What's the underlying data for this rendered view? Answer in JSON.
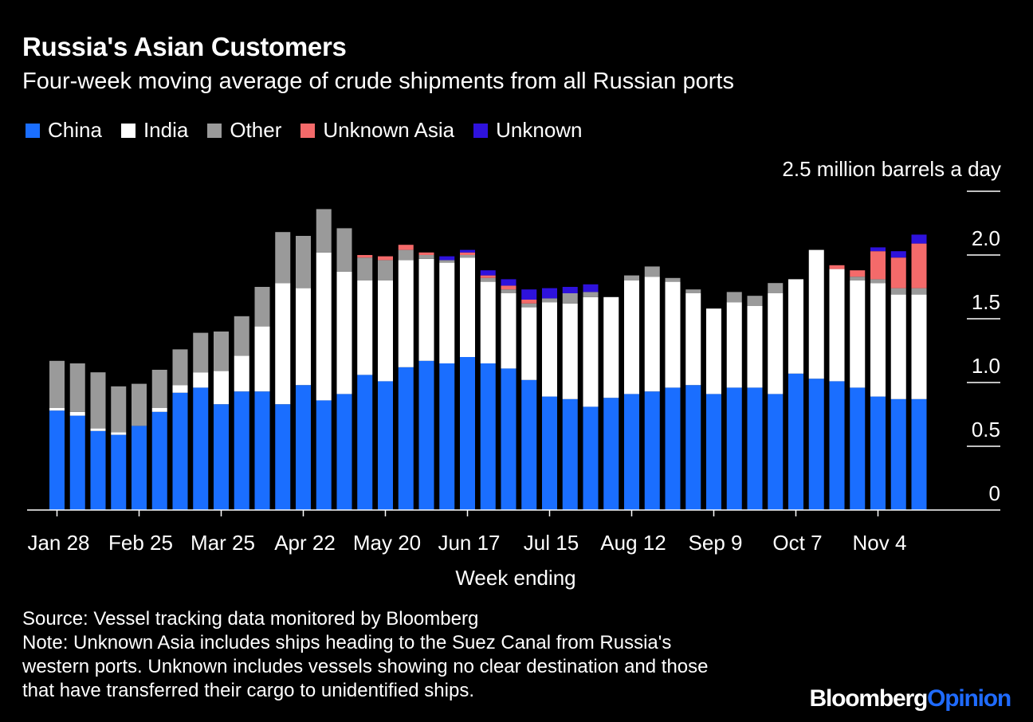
{
  "title": "Russia's Asian Customers",
  "subtitle": "Four-week moving average of crude shipments from all Russian ports",
  "legend": [
    {
      "label": "China",
      "color": "#1a6eff"
    },
    {
      "label": "India",
      "color": "#ffffff"
    },
    {
      "label": "Other",
      "color": "#9a9a9a"
    },
    {
      "label": "Unknown Asia",
      "color": "#f46a6a"
    },
    {
      "label": "Unknown",
      "color": "#2e12dd"
    }
  ],
  "unit_label": "2.5 million barrels a day",
  "xlabel": "Week ending",
  "footnotes": {
    "source": "Source: Vessel tracking data monitored by Bloomberg",
    "note_lines": [
      "Note: Unknown Asia includes ships heading to the Suez Canal from Russia's",
      "western ports. Unknown includes vessels showing no clear destination and those",
      "that have transferred their cargo to unidentified ships."
    ]
  },
  "brand": {
    "part1": "Bloomberg",
    "part2": "Opinion"
  },
  "chart_data": {
    "type": "bar",
    "stacked": true,
    "ylim": [
      0,
      2.5
    ],
    "yticks": [
      0,
      0.5,
      1.0,
      1.5,
      2.0
    ],
    "ytick_labels": [
      "0",
      "0.5",
      "1.0",
      "1.5",
      "2.0"
    ],
    "xtick_labels": [
      {
        "label": "Jan 28",
        "index": 0
      },
      {
        "label": "Feb 25",
        "index": 4
      },
      {
        "label": "Mar 25",
        "index": 8
      },
      {
        "label": "Apr 22",
        "index": 12
      },
      {
        "label": "May 20",
        "index": 16
      },
      {
        "label": "Jun 17",
        "index": 20
      },
      {
        "label": "Jul 15",
        "index": 24
      },
      {
        "label": "Aug 12",
        "index": 28
      },
      {
        "label": "Sep 9",
        "index": 32
      },
      {
        "label": "Oct 7",
        "index": 36
      },
      {
        "label": "Nov 4",
        "index": 40
      }
    ],
    "series": [
      {
        "name": "China",
        "color": "#1a6eff",
        "values": [
          0.78,
          0.74,
          0.62,
          0.59,
          0.66,
          0.77,
          0.92,
          0.96,
          0.83,
          0.93,
          0.93,
          0.83,
          0.98,
          0.86,
          0.91,
          1.06,
          1.01,
          1.12,
          1.17,
          1.15,
          1.2,
          1.15,
          1.11,
          1.02,
          0.89,
          0.87,
          0.81,
          0.88,
          0.91,
          0.93,
          0.96,
          0.98,
          0.91,
          0.96,
          0.96,
          0.91,
          1.07,
          1.03,
          1.01,
          0.96,
          0.89,
          0.87,
          0.87
        ]
      },
      {
        "name": "India",
        "color": "#ffffff",
        "values": [
          0.02,
          0.03,
          0.02,
          0.02,
          0.0,
          0.03,
          0.06,
          0.12,
          0.26,
          0.28,
          0.51,
          0.95,
          0.76,
          1.16,
          0.96,
          0.74,
          0.79,
          0.84,
          0.8,
          0.79,
          0.78,
          0.64,
          0.59,
          0.57,
          0.74,
          0.75,
          0.86,
          0.79,
          0.89,
          0.9,
          0.83,
          0.72,
          0.67,
          0.67,
          0.64,
          0.79,
          0.74,
          1.01,
          0.88,
          0.84,
          0.89,
          0.82,
          0.82
        ]
      },
      {
        "name": "Other",
        "color": "#9a9a9a",
        "values": [
          0.37,
          0.38,
          0.44,
          0.36,
          0.33,
          0.3,
          0.28,
          0.31,
          0.31,
          0.31,
          0.31,
          0.4,
          0.41,
          0.34,
          0.34,
          0.18,
          0.16,
          0.08,
          0.03,
          0.02,
          0.02,
          0.03,
          0.03,
          0.03,
          0.03,
          0.08,
          0.04,
          0.0,
          0.04,
          0.08,
          0.03,
          0.03,
          0.0,
          0.08,
          0.08,
          0.08,
          0.0,
          0.0,
          0.0,
          0.03,
          0.03,
          0.05,
          0.05
        ]
      },
      {
        "name": "Unknown Asia",
        "color": "#f46a6a",
        "values": [
          0,
          0,
          0,
          0,
          0,
          0,
          0,
          0,
          0,
          0,
          0,
          0,
          0,
          0,
          0,
          0.02,
          0.03,
          0.04,
          0.02,
          0,
          0.02,
          0.02,
          0.03,
          0.03,
          0,
          0,
          0,
          0,
          0,
          0,
          0,
          0,
          0,
          0,
          0,
          0,
          0,
          0,
          0.03,
          0.05,
          0.22,
          0.24,
          0.35
        ]
      },
      {
        "name": "Unknown",
        "color": "#2e12dd",
        "values": [
          0,
          0,
          0,
          0,
          0,
          0,
          0,
          0,
          0,
          0,
          0,
          0,
          0,
          0,
          0,
          0,
          0,
          0,
          0,
          0.03,
          0.02,
          0.04,
          0.05,
          0.08,
          0.08,
          0.05,
          0.06,
          0,
          0,
          0,
          0,
          0,
          0,
          0,
          0,
          0,
          0,
          0,
          0,
          0,
          0.03,
          0.05,
          0.07
        ]
      }
    ]
  }
}
